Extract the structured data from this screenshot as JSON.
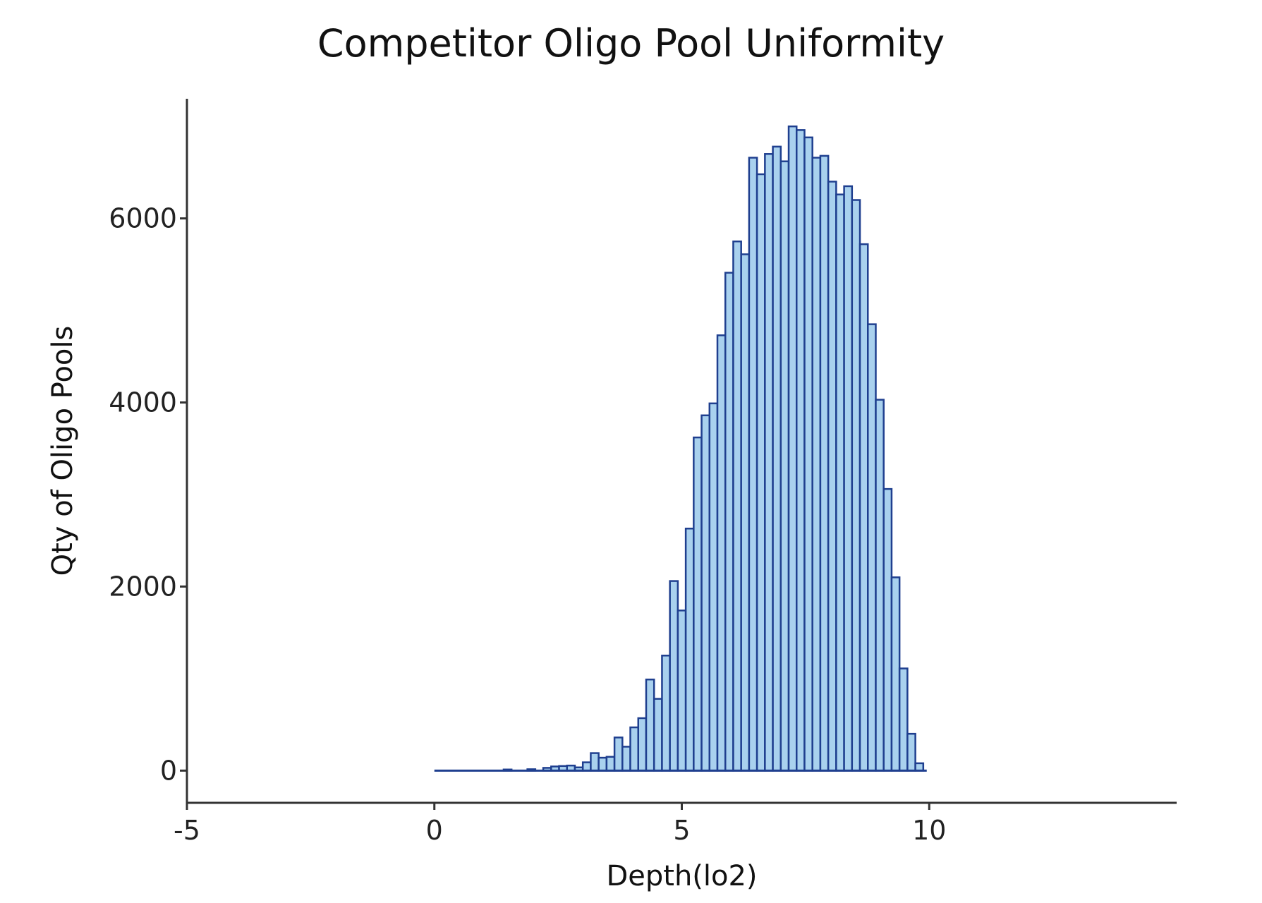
{
  "chart_data": {
    "type": "bar",
    "title": "Competitor Oligo Pool Uniformity",
    "xlabel": "Depth(lo2)",
    "ylabel": "Qty of Oligo Pools",
    "xlim": [
      -5,
      15
    ],
    "ylim": [
      -350,
      7300
    ],
    "x_ticks": [
      -5,
      0,
      5,
      10
    ],
    "x_tick_labels": [
      "-5",
      "0",
      "5",
      "10"
    ],
    "y_ticks": [
      0,
      2000,
      4000,
      6000
    ],
    "y_tick_labels": [
      "0",
      "2000",
      "4000",
      "6000"
    ],
    "grid": false,
    "bar_fill": "#a9d1ee",
    "bar_stroke": "#1f3f8f",
    "bin_width": 0.16,
    "x": [
      1.48,
      1.96,
      2.28,
      2.44,
      2.6,
      2.76,
      2.92,
      3.08,
      3.24,
      3.4,
      3.56,
      3.72,
      3.88,
      4.04,
      4.2,
      4.36,
      4.52,
      4.68,
      4.84,
      5.0,
      5.16,
      5.32,
      5.48,
      5.64,
      5.8,
      5.96,
      6.12,
      6.28,
      6.44,
      6.6,
      6.76,
      6.92,
      7.08,
      7.24,
      7.4,
      7.56,
      7.72,
      7.88,
      8.04,
      8.2,
      8.36,
      8.52,
      8.68,
      8.84,
      9.0,
      9.16,
      9.32,
      9.48,
      9.64,
      9.8
    ],
    "values": [
      12,
      15,
      30,
      45,
      50,
      55,
      35,
      90,
      190,
      140,
      150,
      360,
      260,
      470,
      570,
      990,
      780,
      1250,
      2060,
      1740,
      2630,
      3620,
      3860,
      3990,
      4730,
      5410,
      5750,
      5610,
      6660,
      6480,
      6700,
      6780,
      6620,
      7000,
      6960,
      6880,
      6660,
      6680,
      6400,
      6260,
      6350,
      6200,
      5720,
      4850,
      4030,
      3060,
      2100,
      1110,
      400,
      80
    ]
  }
}
